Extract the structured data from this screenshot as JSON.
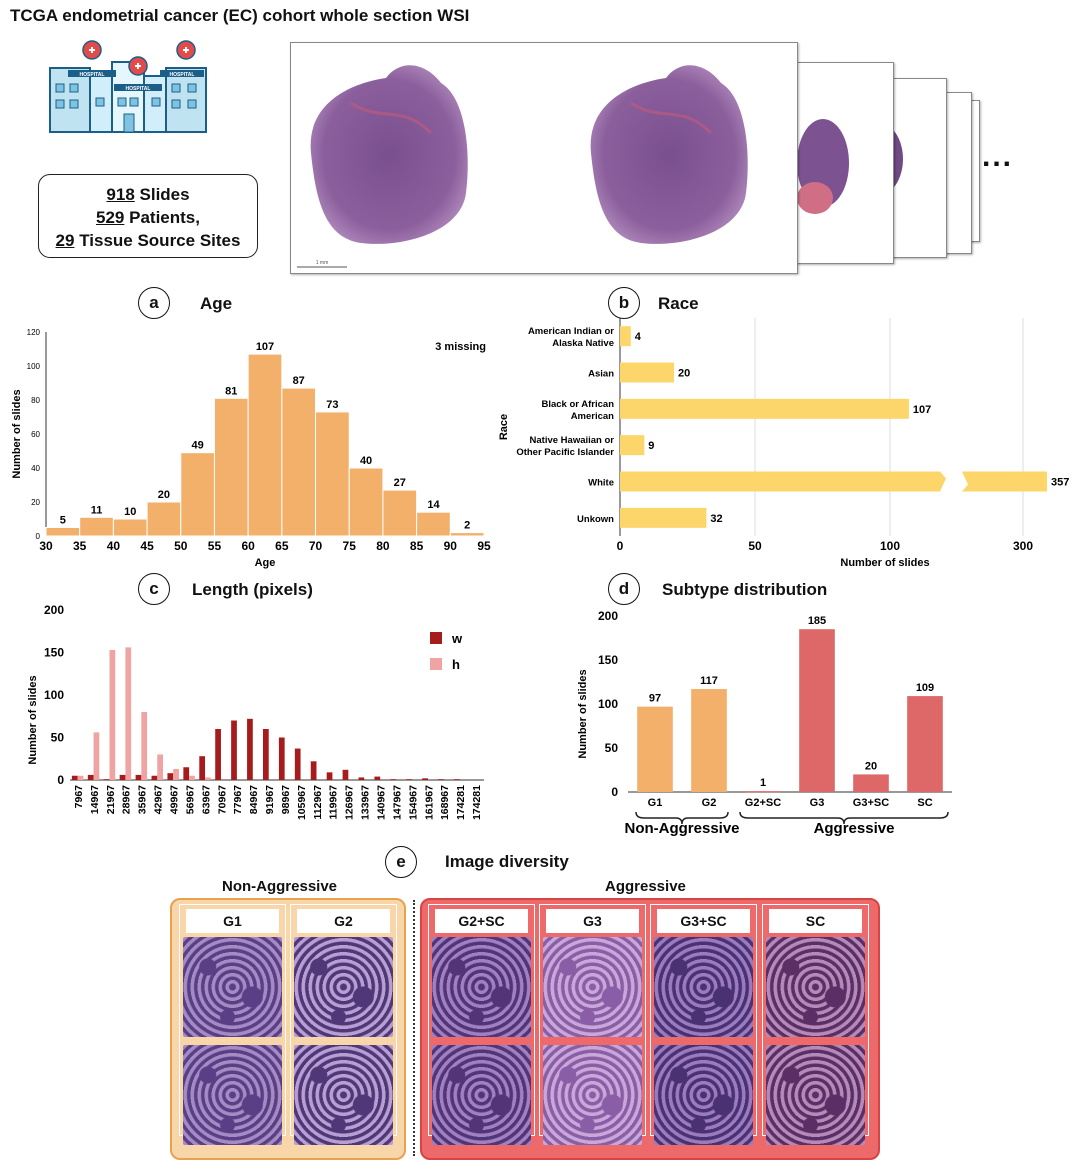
{
  "header": {
    "title": "TCGA endometrial cancer (EC) cohort whole section WSI"
  },
  "stats": {
    "slides_num": "918",
    "slides_label": " Slides",
    "patients_num": "529",
    "patients_label": " Patients,",
    "sites_num": "29",
    "sites_label": " Tissue Source Sites"
  },
  "hospital": {
    "sign": "HOSPITAL"
  },
  "wsi": {
    "ellipsis": "...",
    "scale_text": "1 mm"
  },
  "panels": {
    "a": {
      "letter": "a",
      "title": "Age"
    },
    "b": {
      "letter": "b",
      "title": "Race"
    },
    "c": {
      "letter": "c",
      "title": "Length (pixels)"
    },
    "d": {
      "letter": "d",
      "title": "Subtype distribution"
    },
    "e": {
      "letter": "e",
      "title": "Image diversity"
    }
  },
  "colors": {
    "orange": "#F2B06B",
    "red": "#DE6868",
    "yellow": "#FDD66B",
    "darkred": "#A61C1C",
    "pink": "#EFA3A3",
    "nonagg_bg": "#F9D6A9",
    "agg_bg": "#EE6A6A"
  },
  "chart_data": [
    {
      "id": "age",
      "type": "bar",
      "title": "Age",
      "xlabel": "Age",
      "ylabel": "Number of slides",
      "bin_edges": [
        30,
        35,
        40,
        45,
        50,
        55,
        60,
        65,
        70,
        75,
        80,
        85,
        90,
        95
      ],
      "values": [
        5,
        11,
        10,
        20,
        49,
        81,
        107,
        87,
        73,
        40,
        27,
        14,
        2
      ],
      "x_ticks": [
        "30",
        "35",
        "40",
        "45",
        "50",
        "55",
        "60",
        "65",
        "70",
        "75",
        "80",
        "85",
        "90",
        "95"
      ],
      "y_ticks": [
        "0",
        "20",
        "40",
        "60",
        "80",
        "100",
        "120"
      ],
      "ylim": [
        0,
        120
      ],
      "annotation": "3 missing"
    },
    {
      "id": "race",
      "type": "bar",
      "orientation": "horizontal",
      "title": "Race",
      "xlabel": "Number of slides",
      "ylabel": "Race",
      "categories": [
        [
          "American Indian or",
          "Alaska Native"
        ],
        [
          "Asian"
        ],
        [
          "Black or African",
          "American"
        ],
        [
          "Native Hawaiian or",
          "Other Pacific Islander"
        ],
        [
          "White"
        ],
        [
          "Unkown"
        ]
      ],
      "values": [
        4,
        20,
        107,
        9,
        357,
        32
      ],
      "x_ticks": [
        "0",
        "50",
        "100",
        "300"
      ],
      "axis_break": true
    },
    {
      "id": "length",
      "type": "bar",
      "title": "Length (pixels)",
      "xlabel": "",
      "ylabel": "Number of slides",
      "categories": [
        "7967",
        "14967",
        "21967",
        "28967",
        "35967",
        "42967",
        "49967",
        "56967",
        "63967",
        "70967",
        "77967",
        "84967",
        "91967",
        "98967",
        "105967",
        "112967",
        "119967",
        "126967",
        "133967",
        "140967",
        "147967",
        "154967",
        "161967",
        "168967",
        "174281",
        "174281"
      ],
      "series": [
        {
          "name": "w",
          "values": [
            5,
            6,
            1,
            6,
            6,
            5,
            8,
            15,
            28,
            60,
            70,
            72,
            60,
            50,
            37,
            22,
            9,
            12,
            3,
            4,
            1,
            1,
            2,
            1,
            1,
            0
          ]
        },
        {
          "name": "h",
          "values": [
            5,
            56,
            153,
            156,
            80,
            30,
            13,
            5,
            3,
            0,
            0,
            0,
            0,
            0,
            0,
            0,
            0,
            0,
            0,
            0,
            0,
            0,
            0,
            0,
            0,
            0
          ]
        }
      ],
      "y_ticks": [
        "0",
        "50",
        "100",
        "150",
        "200"
      ],
      "ylim": [
        0,
        200
      ]
    },
    {
      "id": "subtype",
      "type": "bar",
      "title": "Subtype distribution",
      "xlabel": "",
      "ylabel": "Number of slides",
      "categories": [
        "G1",
        "G2",
        "G2+SC",
        "G3",
        "G3+SC",
        "SC"
      ],
      "values": [
        97,
        117,
        1,
        185,
        20,
        109
      ],
      "groups": [
        {
          "name": "Non-Aggressive",
          "members": [
            "G1",
            "G2"
          ]
        },
        {
          "name": "Aggressive",
          "members": [
            "G2+SC",
            "G3",
            "G3+SC",
            "SC"
          ]
        }
      ],
      "y_ticks": [
        "0",
        "50",
        "100",
        "150",
        "200"
      ],
      "ylim": [
        0,
        200
      ]
    }
  ],
  "diversity": {
    "nonagg_title": "Non-Aggressive",
    "agg_title": "Aggressive",
    "tiles": [
      "G1",
      "G2",
      "G2+SC",
      "G3",
      "G3+SC",
      "SC"
    ]
  }
}
